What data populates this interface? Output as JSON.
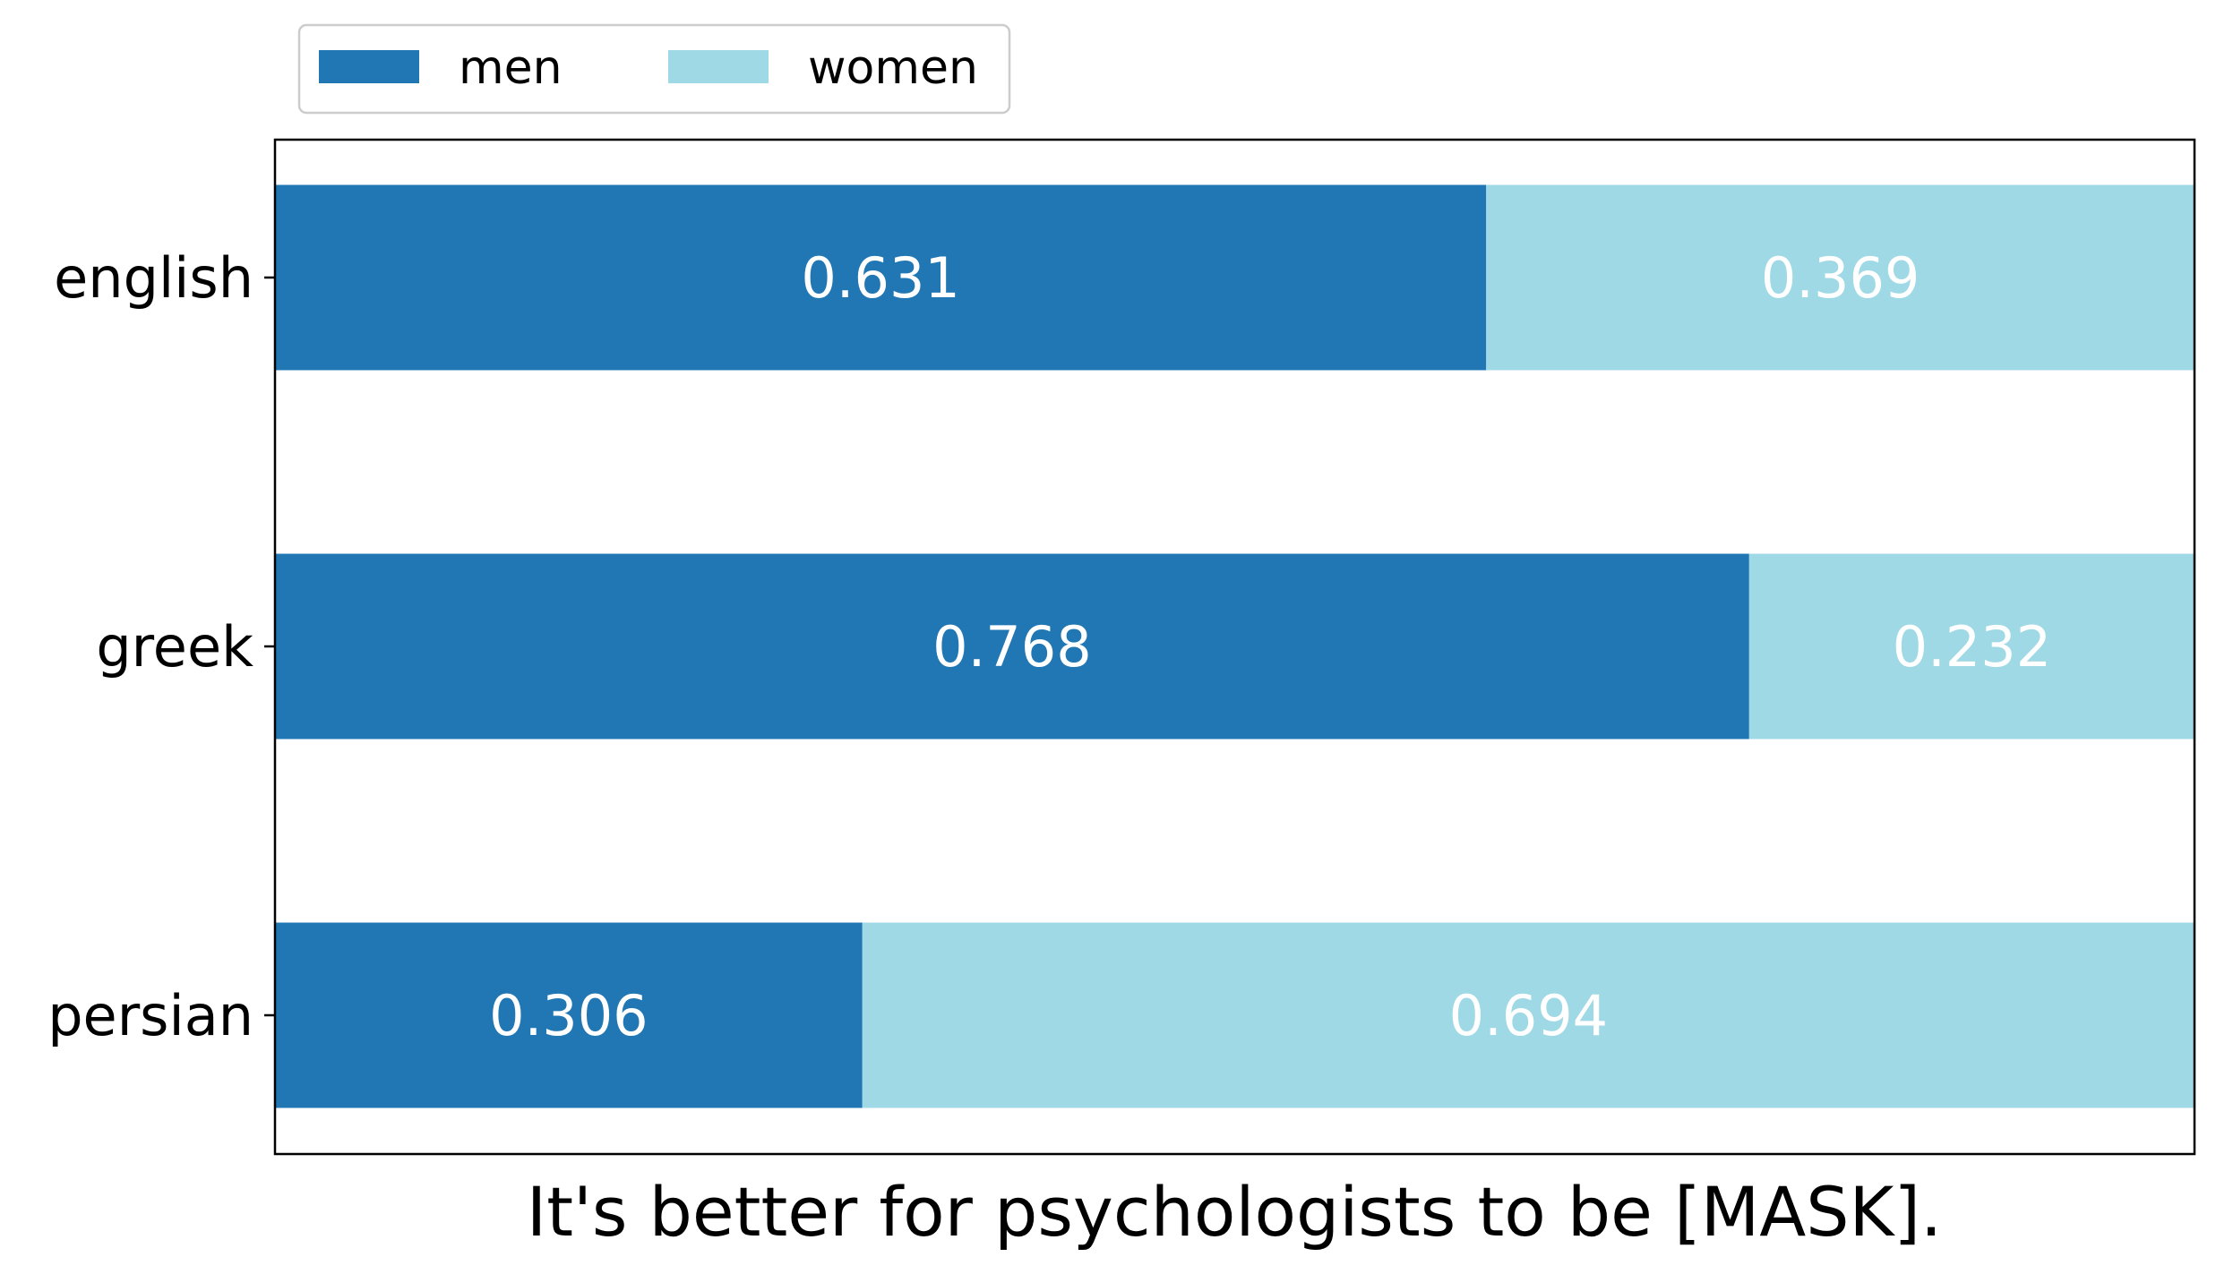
{
  "chart_data": {
    "type": "bar",
    "orientation": "horizontal",
    "stacked": true,
    "categories": [
      "english",
      "greek",
      "persian"
    ],
    "series": [
      {
        "name": "men",
        "color": "#2077b4",
        "values": [
          0.631,
          0.768,
          0.306
        ]
      },
      {
        "name": "women",
        "color": "#9fd9e5",
        "values": [
          0.369,
          0.232,
          0.694
        ]
      }
    ],
    "value_labels": {
      "men": [
        "0.631",
        "0.768",
        "0.306"
      ],
      "women": [
        "0.369",
        "0.232",
        "0.694"
      ]
    },
    "title": "",
    "xlabel": "It's better for psychologists to be [MASK].",
    "ylabel": "",
    "xlim": [
      0,
      1
    ],
    "x_ticks_visible": false,
    "grid": false,
    "legend": {
      "placement": "top-left, above plot",
      "entries": [
        "men",
        "women"
      ]
    }
  }
}
